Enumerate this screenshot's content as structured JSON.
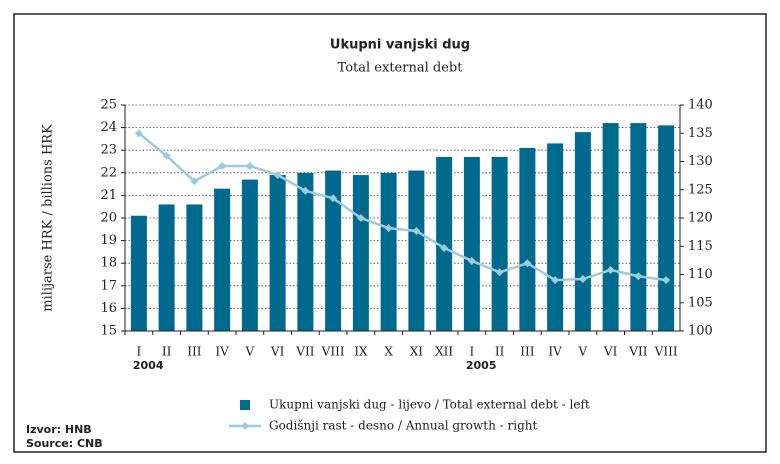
{
  "chart_data": {
    "type": "bar_line",
    "title": "Ukupni vanjski dug",
    "subtitle": "Total external debt",
    "y_label": "milijarse HRK / billions HRK",
    "categories": [
      "I",
      "II",
      "III",
      "IV",
      "V",
      "VI",
      "VII",
      "VIII",
      "IX",
      "X",
      "XI",
      "XII",
      "I",
      "II",
      "III",
      "IV",
      "V",
      "VI",
      "VII",
      "VIII"
    ],
    "years": [
      "2004",
      null,
      null,
      null,
      null,
      null,
      null,
      null,
      null,
      null,
      null,
      null,
      "2005",
      null,
      null,
      null,
      null,
      null,
      null,
      null
    ],
    "series": [
      {
        "name": "Ukupni vanjski dug - lijevo / Total external debt - left",
        "color": "#006a8e",
        "axis": "y",
        "values": [
          20.1,
          20.6,
          20.6,
          21.3,
          21.7,
          21.9,
          22.0,
          22.1,
          21.9,
          22.0,
          22.1,
          22.7,
          22.7,
          22.7,
          23.1,
          23.3,
          23.8,
          24.2,
          24.2,
          24.1
        ]
      },
      {
        "name": "Godišnji rast - desno / Annual growth - right",
        "color": "#9ecbdc",
        "axis": "y2",
        "values": [
          135.0,
          131.0,
          126.5,
          129.2,
          129.2,
          127.6,
          124.8,
          123.5,
          120.0,
          118.2,
          117.7,
          114.7,
          112.4,
          110.4,
          112.0,
          109.0,
          109.2,
          110.8,
          109.7,
          109.0
        ]
      }
    ],
    "ylim": [
      15,
      25
    ],
    "yticks": [
      15,
      16,
      17,
      18,
      19,
      20,
      21,
      22,
      23,
      24,
      25
    ],
    "y2lim": [
      100,
      140
    ],
    "y2ticks": [
      100,
      105,
      110,
      115,
      120,
      125,
      130,
      135,
      140
    ],
    "grid": true,
    "source": [
      "Izvor: HNB",
      "Source: CNB"
    ]
  }
}
